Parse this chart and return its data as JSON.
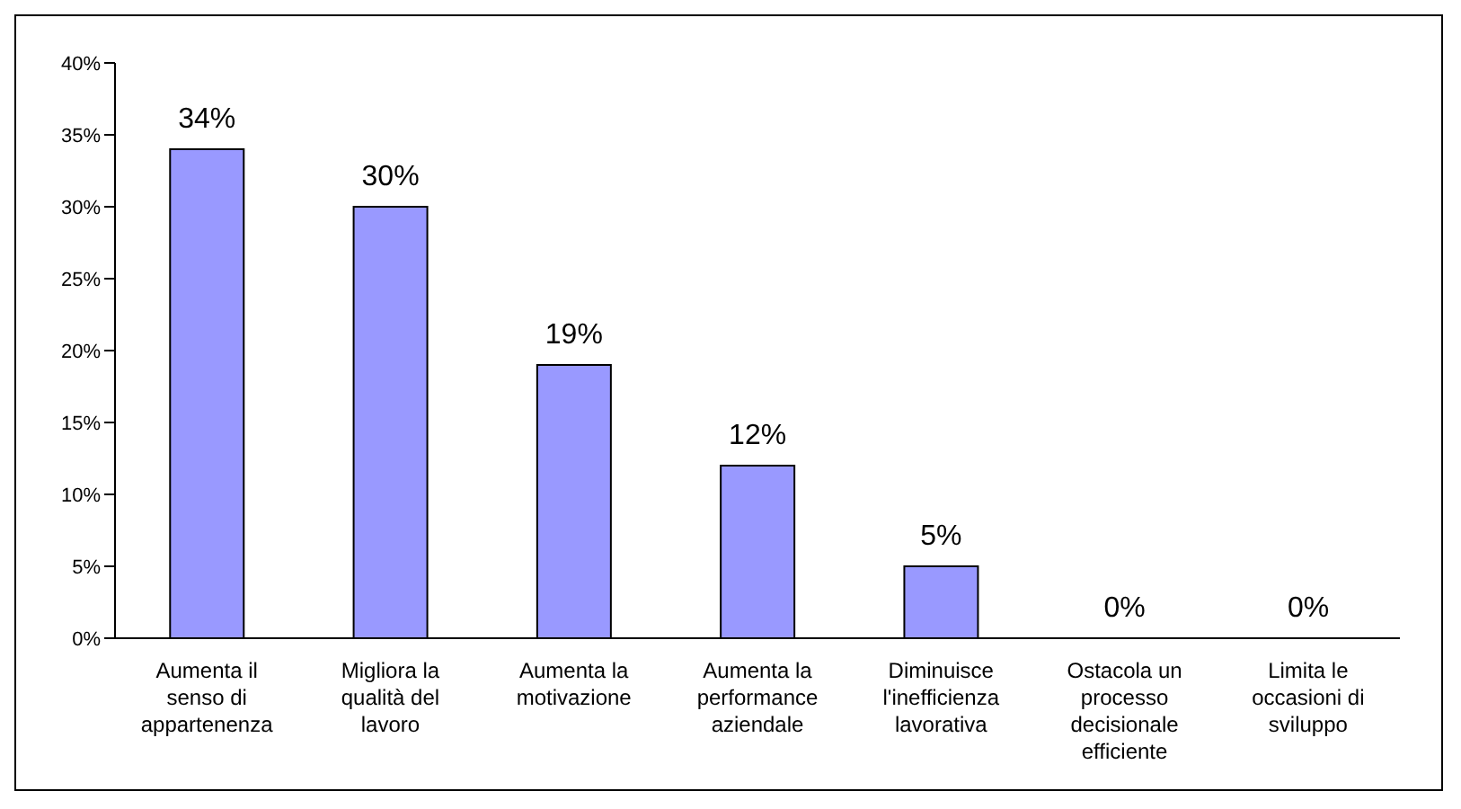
{
  "chart_data": {
    "type": "bar",
    "categories": [
      "Aumenta il senso di appartenenza",
      "Migliora la qualità del lavoro",
      "Aumenta la motivazione",
      "Aumenta la performance aziendale",
      "Diminuisce l'inefficienza lavorativa",
      "Ostacola un processo decisionale efficiente",
      "Limita le occasioni di sviluppo"
    ],
    "values": [
      34,
      30,
      19,
      12,
      5,
      0,
      0
    ],
    "value_labels": [
      "34%",
      "30%",
      "19%",
      "12%",
      "5%",
      "0%",
      "0%"
    ],
    "color": "#9999ff",
    "ylim": [
      0,
      40
    ],
    "yticks": [
      {
        "value": 0,
        "label": "0%"
      },
      {
        "value": 5,
        "label": "5%"
      },
      {
        "value": 10,
        "label": "10%"
      },
      {
        "value": 15,
        "label": "15%"
      },
      {
        "value": 20,
        "label": "20%"
      },
      {
        "value": 25,
        "label": "25%"
      },
      {
        "value": 30,
        "label": "30%"
      },
      {
        "value": 35,
        "label": "35%"
      },
      {
        "value": 40,
        "label": "40%"
      }
    ],
    "grid": false,
    "legend": false
  }
}
